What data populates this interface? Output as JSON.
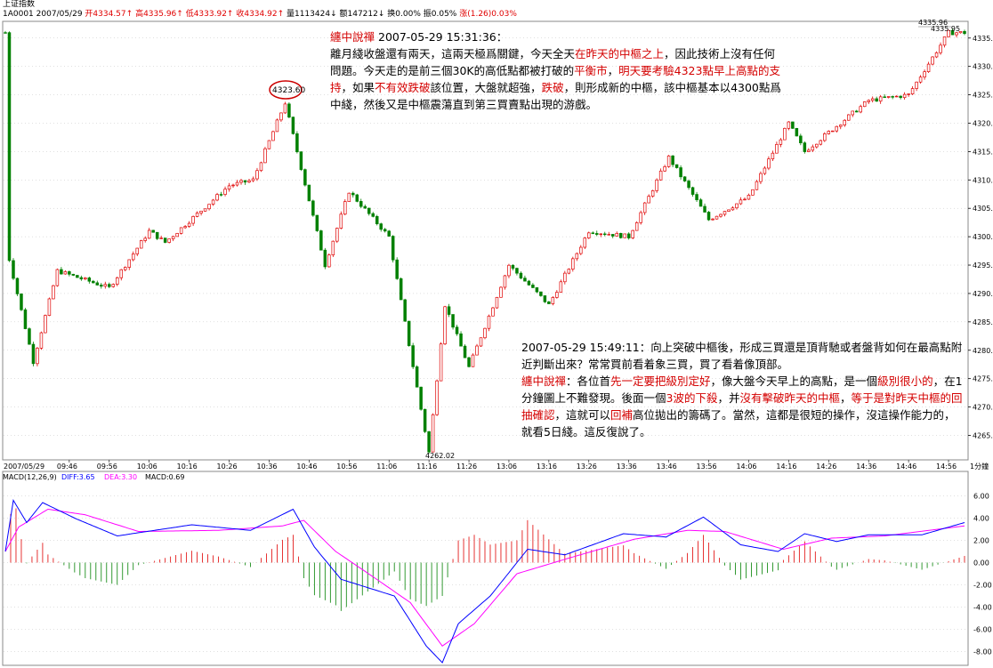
{
  "header": {
    "title": "上证指数",
    "code": "1A0001",
    "date": "2007/05/29",
    "open": "开4334.57",
    "high": "高4335.96",
    "low": "低4333.92",
    "close": "收4334.92",
    "volume": "量1113424",
    "amount": "额147212",
    "turnover": "换0.00%",
    "amplitude": "振0.05%",
    "change": "涨(1.26)0.03%"
  },
  "price_labels": {
    "peak": "4323.60",
    "low": "4262.02",
    "high": "4335.96",
    "last": "4335.95"
  },
  "note1": {
    "head": "纏中說禪",
    "time": " 2007-05-29 15:31:36：",
    "segs": [
      {
        "t": "離月綫收盤還有兩天，這兩天極爲關鍵，今天全天",
        "r": false
      },
      {
        "t": "在昨天的中樞之上",
        "r": true
      },
      {
        "t": "，因此技術上沒有任何問題。今天走的是前三個30K的高低點都被打破的",
        "r": false
      },
      {
        "t": "平衡市",
        "r": true
      },
      {
        "t": "，",
        "r": false
      },
      {
        "t": "明天要考驗4323點早上高點的支持",
        "r": true
      },
      {
        "t": "，如果",
        "r": false
      },
      {
        "t": "不有效跌破",
        "r": true
      },
      {
        "t": "該位置，大盤就超強，",
        "r": false
      },
      {
        "t": "跌破",
        "r": true
      },
      {
        "t": "，則形成新的中樞，該中樞基本以4300點爲中綫，然後又是中樞震蕩直到第三買賣點出現的游戲。",
        "r": false
      }
    ]
  },
  "note2": {
    "q": "2007-05-29 15:49:11：向上突破中樞後，形成三買還是頂背馳或者盤背如何在最高點附近判斷出來？常常買前看着象三買，買了看着像頂部。",
    "head": "纏中說禪",
    "segs": [
      {
        "t": "：各位首",
        "r": false
      },
      {
        "t": "先一定要把級別定好",
        "r": true
      },
      {
        "t": "，像大盤今天早上的高點，是一個",
        "r": false
      },
      {
        "t": "級別很小的",
        "r": true
      },
      {
        "t": "，在1分鐘圖上不難發現。後面一個",
        "r": false
      },
      {
        "t": "3波的下殺",
        "r": true
      },
      {
        "t": "，并",
        "r": false
      },
      {
        "t": "沒有擊破昨天的中樞",
        "r": true
      },
      {
        "t": "，",
        "r": false
      },
      {
        "t": "等于是對昨天中樞的回抽確認",
        "r": true
      },
      {
        "t": "，這就可以",
        "r": false
      },
      {
        "t": "回補",
        "r": true
      },
      {
        "t": "高位拋出的籌碼了。當然，這都是很短的操作，沒這操作能力的，就看5日綫。這反復說了。",
        "r": false
      }
    ]
  },
  "time_axis": {
    "labels": [
      "2007/05/29",
      "09:46",
      "09:56",
      "10:06",
      "10:16",
      "10:26",
      "10:36",
      "10:46",
      "10:56",
      "11:06",
      "11:16",
      "11:26",
      "13:06",
      "13:16",
      "13:26",
      "13:36",
      "13:46",
      "13:56",
      "14:06",
      "14:16",
      "14:26",
      "14:36",
      "14:46",
      "14:56"
    ],
    "period": "1分鐘"
  },
  "macd": {
    "title": "MACD(12,26,9)",
    "diff": "DIFF:3.65",
    "dea": "DEA:3.30",
    "macd": "MACD:0.69"
  },
  "chart_data": [
    {
      "type": "candlestick",
      "title": "上证指数 1分鐘",
      "ylim": [
        4261,
        4337
      ],
      "y_ticks": [
        4265,
        4270,
        4275,
        4280,
        4285,
        4290,
        4295,
        4300,
        4305,
        4310,
        4315,
        4320,
        4325,
        4330,
        4335
      ],
      "key_points": [
        {
          "time": "09:31",
          "value": 4296
        },
        {
          "time": "09:37",
          "value": 4278
        },
        {
          "time": "09:43",
          "value": 4294
        },
        {
          "time": "09:56",
          "value": 4291
        },
        {
          "time": "10:06",
          "value": 4301
        },
        {
          "time": "10:10",
          "value": 4299
        },
        {
          "time": "10:26",
          "value": 4309
        },
        {
          "time": "10:32",
          "value": 4310
        },
        {
          "time": "10:40",
          "value": 4323.6
        },
        {
          "time": "10:50",
          "value": 4295
        },
        {
          "time": "10:56",
          "value": 4308
        },
        {
          "time": "11:06",
          "value": 4300
        },
        {
          "time": "11:16",
          "value": 4262.02
        },
        {
          "time": "11:20",
          "value": 4288
        },
        {
          "time": "11:26",
          "value": 4277
        },
        {
          "time": "13:06",
          "value": 4295
        },
        {
          "time": "13:16",
          "value": 4288
        },
        {
          "time": "13:26",
          "value": 4301
        },
        {
          "time": "13:36",
          "value": 4300
        },
        {
          "time": "13:46",
          "value": 4314
        },
        {
          "time": "13:56",
          "value": 4303
        },
        {
          "time": "14:06",
          "value": 4307
        },
        {
          "time": "14:16",
          "value": 4320
        },
        {
          "time": "14:20",
          "value": 4315
        },
        {
          "time": "14:36",
          "value": 4324
        },
        {
          "time": "14:46",
          "value": 4325
        },
        {
          "time": "14:56",
          "value": 4335.96
        }
      ]
    },
    {
      "type": "line",
      "title": "MACD(12,26,9)",
      "ylim": [
        -9,
        7
      ],
      "y_ticks": [
        6,
        4,
        2,
        0,
        -2,
        -4,
        -6,
        -8
      ],
      "series": [
        {
          "name": "DIFF",
          "color": "#0000ff",
          "key_points": [
            [
              0,
              1
            ],
            [
              3,
              5.6
            ],
            [
              8,
              3.6
            ],
            [
              14,
              5.4
            ],
            [
              26,
              4.0
            ],
            [
              42,
              2.4
            ],
            [
              70,
              3.4
            ],
            [
              92,
              2.9
            ],
            [
              108,
              4.8
            ],
            [
              116,
              1.4
            ],
            [
              126,
              -1.5
            ],
            [
              138,
              -2.4
            ],
            [
              146,
              -3.0
            ],
            [
              158,
              -7.5
            ],
            [
              164,
              -9.0
            ],
            [
              170,
              -5.5
            ],
            [
              182,
              -3.0
            ],
            [
              196,
              1.2
            ],
            [
              210,
              0.7
            ],
            [
              232,
              2.6
            ],
            [
              248,
              2.3
            ],
            [
              262,
              4.1
            ],
            [
              276,
              1.6
            ],
            [
              290,
              1.0
            ],
            [
              300,
              2.6
            ],
            [
              312,
              1.9
            ],
            [
              324,
              2.5
            ],
            [
              344,
              2.5
            ],
            [
              360,
              3.6
            ]
          ]
        },
        {
          "name": "DEA",
          "color": "#ff00ff",
          "key_points": [
            [
              0,
              1
            ],
            [
              5,
              3.2
            ],
            [
              16,
              4.8
            ],
            [
              30,
              4.3
            ],
            [
              50,
              2.8
            ],
            [
              80,
              2.9
            ],
            [
              104,
              3.3
            ],
            [
              112,
              3.8
            ],
            [
              124,
              1.0
            ],
            [
              140,
              -1.6
            ],
            [
              152,
              -3.6
            ],
            [
              164,
              -7.5
            ],
            [
              176,
              -5.5
            ],
            [
              192,
              -1.0
            ],
            [
              210,
              0.3
            ],
            [
              236,
              2.1
            ],
            [
              256,
              2.9
            ],
            [
              270,
              2.8
            ],
            [
              292,
              1.2
            ],
            [
              310,
              2.2
            ],
            [
              330,
              2.4
            ],
            [
              360,
              3.3
            ]
          ]
        },
        {
          "name": "MACD",
          "color": "#e00000",
          "values_text": "histogram, red above 0 and green below"
        }
      ]
    }
  ],
  "colors": {
    "up": "#e00000",
    "down": "#008000",
    "diff": "#0000ff",
    "dea": "#ff00ff",
    "grid": "#c0c0c0"
  }
}
